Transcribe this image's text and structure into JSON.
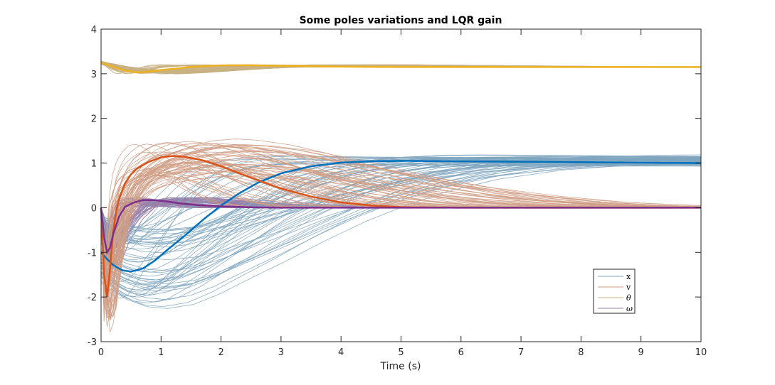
{
  "chart_data": {
    "type": "line",
    "title": "Some poles variations and LQR gain",
    "xlabel": "Time (s)",
    "ylabel": "",
    "xlim": [
      0,
      10
    ],
    "ylim": [
      -3,
      4
    ],
    "xticks": [
      "0",
      "1",
      "2",
      "3",
      "4",
      "5",
      "6",
      "7",
      "8",
      "9",
      "10"
    ],
    "yticks": [
      "-3",
      "-2",
      "-1",
      "0",
      "1",
      "2",
      "3",
      "4"
    ],
    "grid": false,
    "legend": {
      "placement": "bottom-right",
      "entries": [
        "x",
        "v",
        "θ",
        "ω"
      ]
    },
    "colors": {
      "x_main": "#0072BD",
      "x_var": "#7FA5BF",
      "v_main": "#D95319",
      "v_var": "#CF9D85",
      "theta_main": "#EDB120",
      "theta_var": "#C8B183",
      "omega_main": "#7E2F8E",
      "omega_var": "#9A7FA8"
    },
    "series": [
      {
        "name": "x",
        "variable": "x",
        "x": [
          0,
          0.1,
          0.2,
          0.35,
          0.5,
          0.7,
          0.9,
          1.1,
          1.4,
          1.7,
          2.0,
          2.3,
          2.6,
          3.0,
          3.5,
          4.0,
          4.5,
          5.0,
          6.0,
          7.0,
          8.0,
          9.0,
          10.0
        ],
        "values": [
          -1.0,
          -1.15,
          -1.28,
          -1.4,
          -1.43,
          -1.36,
          -1.18,
          -0.95,
          -0.62,
          -0.27,
          0.05,
          0.32,
          0.55,
          0.77,
          0.93,
          1.01,
          1.04,
          1.05,
          1.04,
          1.03,
          1.02,
          1.01,
          1.0
        ]
      },
      {
        "name": "v",
        "variable": "v",
        "x": [
          0,
          0.04,
          0.08,
          0.12,
          0.16,
          0.2,
          0.25,
          0.3,
          0.4,
          0.5,
          0.6,
          0.8,
          1.0,
          1.2,
          1.4,
          1.7,
          2.0,
          2.5,
          3.0,
          3.5,
          4.0,
          4.5,
          5.0,
          6.0,
          7.0,
          8.0,
          10.0
        ],
        "values": [
          0,
          -1.3,
          -2.1,
          -1.9,
          -1.2,
          -0.55,
          -0.1,
          0.2,
          0.55,
          0.75,
          0.88,
          1.03,
          1.13,
          1.16,
          1.14,
          1.06,
          0.93,
          0.67,
          0.43,
          0.25,
          0.12,
          0.05,
          0.01,
          0,
          0,
          0,
          0
        ]
      },
      {
        "name": "θ",
        "variable": "theta",
        "x": [
          0,
          0.2,
          0.4,
          0.6,
          0.8,
          1.0,
          1.2,
          1.5,
          1.8,
          2.1,
          2.5,
          3.0,
          4.0,
          5.0,
          6.0,
          7.0,
          8.0,
          10.0
        ],
        "values": [
          3.25,
          3.16,
          3.07,
          3.03,
          3.05,
          3.08,
          3.11,
          3.15,
          3.18,
          3.19,
          3.19,
          3.18,
          3.16,
          3.15,
          3.15,
          3.15,
          3.15,
          3.15
        ]
      },
      {
        "name": "ω",
        "variable": "omega",
        "x": [
          0,
          0.05,
          0.1,
          0.15,
          0.2,
          0.3,
          0.4,
          0.55,
          0.7,
          0.9,
          1.1,
          1.3,
          1.6,
          2.0,
          2.5,
          3.0,
          4.0,
          5.0,
          10.0
        ],
        "values": [
          0,
          -0.65,
          -1.0,
          -0.9,
          -0.6,
          -0.2,
          0.02,
          0.12,
          0.17,
          0.17,
          0.14,
          0.1,
          0.06,
          0.03,
          0.01,
          0,
          0,
          0,
          0
        ]
      }
    ]
  }
}
